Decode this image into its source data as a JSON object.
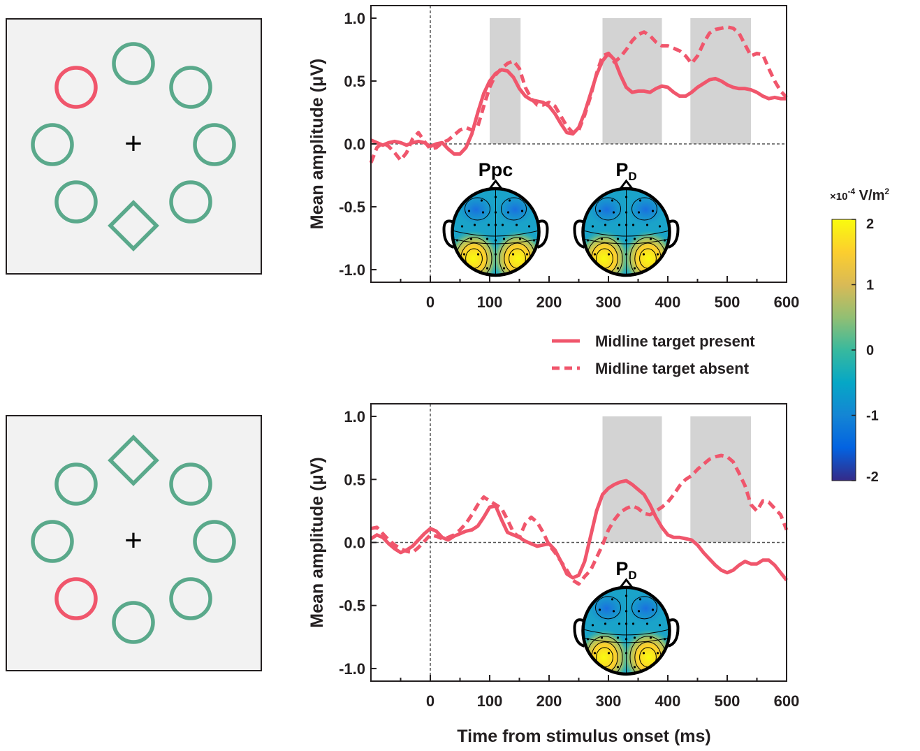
{
  "colors": {
    "target": "#f0566c",
    "distractor": "#5aa98b",
    "window": "#d3d3d3",
    "panel_bg": "#f2f2f2"
  },
  "legend": {
    "present": "Midline target present",
    "absent": "Midline target absent"
  },
  "xlabel": "Time from stimulus onset (ms)",
  "colorbar": {
    "unit_prefix": "×10",
    "unit_exp": "-4",
    "unit_main": " V/m",
    "unit_sup": "2",
    "ticks": [
      "2",
      "1",
      "0",
      "-1",
      "-2"
    ],
    "colormap": "parula"
  },
  "stimuli": [
    {
      "fixation": "+",
      "items": [
        {
          "shape": "circle",
          "color": "target",
          "position": "upper-left"
        },
        {
          "shape": "circle",
          "color": "distractor",
          "position": "top"
        },
        {
          "shape": "circle",
          "color": "distractor",
          "position": "upper-right"
        },
        {
          "shape": "circle",
          "color": "distractor",
          "position": "right"
        },
        {
          "shape": "circle",
          "color": "distractor",
          "position": "lower-right"
        },
        {
          "shape": "diamond",
          "color": "distractor",
          "position": "bottom"
        },
        {
          "shape": "circle",
          "color": "distractor",
          "position": "lower-left"
        },
        {
          "shape": "circle",
          "color": "distractor",
          "position": "left"
        }
      ]
    },
    {
      "fixation": "+",
      "items": [
        {
          "shape": "diamond",
          "color": "distractor",
          "position": "top"
        },
        {
          "shape": "circle",
          "color": "distractor",
          "position": "upper-right"
        },
        {
          "shape": "circle",
          "color": "distractor",
          "position": "right"
        },
        {
          "shape": "circle",
          "color": "distractor",
          "position": "lower-right"
        },
        {
          "shape": "circle",
          "color": "distractor",
          "position": "bottom"
        },
        {
          "shape": "circle",
          "color": "target",
          "position": "lower-left"
        },
        {
          "shape": "circle",
          "color": "distractor",
          "position": "left"
        },
        {
          "shape": "circle",
          "color": "distractor",
          "position": "upper-left"
        }
      ]
    }
  ],
  "chart_data": [
    {
      "type": "line",
      "xlabel": "",
      "ylabel": "Mean amplitude (μV)",
      "xlim": [
        -100,
        600
      ],
      "ylim": [
        -1.1,
        1.1
      ],
      "xticks": [
        "0",
        "100",
        "200",
        "300",
        "400",
        "500",
        "600"
      ],
      "yticks": [
        "1.0",
        "0.5",
        "0.0",
        "-0.5",
        "-1.0"
      ],
      "windows": [
        [
          100,
          152
        ],
        [
          290,
          390
        ],
        [
          438,
          540
        ]
      ],
      "topomaps": [
        {
          "label": "Ppc",
          "sub": "",
          "center_x": 110,
          "center_y": -0.7
        },
        {
          "label": "P",
          "sub": "D",
          "center_x": 330,
          "center_y": -0.7
        }
      ],
      "series": [
        {
          "name": "Midline target present",
          "style": "solid",
          "x": [
            -100,
            -90,
            -80,
            -70,
            -60,
            -50,
            -40,
            -30,
            -20,
            -10,
            0,
            10,
            20,
            30,
            40,
            50,
            60,
            70,
            80,
            90,
            100,
            110,
            120,
            130,
            140,
            150,
            160,
            170,
            180,
            190,
            200,
            210,
            220,
            230,
            240,
            250,
            260,
            270,
            280,
            290,
            300,
            310,
            320,
            330,
            340,
            350,
            360,
            370,
            380,
            390,
            400,
            410,
            420,
            430,
            440,
            450,
            460,
            470,
            480,
            490,
            500,
            510,
            520,
            530,
            540,
            550,
            560,
            570,
            580,
            590,
            600
          ],
          "y": [
            0.03,
            0.01,
            -0.01,
            0.01,
            0.02,
            0.01,
            -0.01,
            0.01,
            0.02,
            0.01,
            -0.02,
            0.0,
            0.01,
            -0.04,
            -0.08,
            -0.08,
            -0.03,
            0.08,
            0.25,
            0.4,
            0.5,
            0.56,
            0.59,
            0.58,
            0.53,
            0.44,
            0.38,
            0.35,
            0.34,
            0.33,
            0.3,
            0.24,
            0.16,
            0.09,
            0.08,
            0.13,
            0.25,
            0.4,
            0.55,
            0.66,
            0.72,
            0.67,
            0.55,
            0.45,
            0.41,
            0.42,
            0.42,
            0.41,
            0.44,
            0.46,
            0.45,
            0.41,
            0.38,
            0.38,
            0.41,
            0.45,
            0.48,
            0.51,
            0.52,
            0.5,
            0.47,
            0.45,
            0.44,
            0.44,
            0.43,
            0.41,
            0.38,
            0.36,
            0.37,
            0.36,
            0.36
          ]
        },
        {
          "name": "Midline target absent",
          "style": "dashed",
          "x": [
            -100,
            -90,
            -80,
            -70,
            -60,
            -50,
            -40,
            -30,
            -20,
            -10,
            0,
            10,
            20,
            30,
            40,
            50,
            60,
            70,
            80,
            90,
            100,
            110,
            120,
            130,
            140,
            150,
            160,
            170,
            180,
            190,
            200,
            210,
            220,
            230,
            240,
            250,
            260,
            270,
            280,
            290,
            300,
            310,
            320,
            330,
            340,
            350,
            360,
            370,
            380,
            390,
            400,
            410,
            420,
            430,
            440,
            450,
            460,
            470,
            480,
            490,
            500,
            510,
            520,
            530,
            540,
            550,
            560,
            570,
            580,
            590,
            600
          ],
          "y": [
            -0.15,
            -0.03,
            0.01,
            -0.02,
            -0.07,
            -0.13,
            -0.07,
            0.04,
            0.09,
            0.02,
            -0.04,
            -0.03,
            0.01,
            0.03,
            0.07,
            0.11,
            0.13,
            0.11,
            0.14,
            0.3,
            0.45,
            0.55,
            0.6,
            0.64,
            0.66,
            0.6,
            0.45,
            0.36,
            0.31,
            0.31,
            0.33,
            0.3,
            0.22,
            0.14,
            0.09,
            0.11,
            0.23,
            0.38,
            0.56,
            0.7,
            0.72,
            0.65,
            0.69,
            0.75,
            0.82,
            0.87,
            0.89,
            0.86,
            0.81,
            0.78,
            0.78,
            0.76,
            0.74,
            0.7,
            0.64,
            0.7,
            0.8,
            0.88,
            0.91,
            0.92,
            0.93,
            0.92,
            0.88,
            0.79,
            0.7,
            0.72,
            0.71,
            0.6,
            0.5,
            0.42,
            0.37
          ]
        }
      ]
    },
    {
      "type": "line",
      "xlabel": "",
      "ylabel": "Mean amplitude (μV)",
      "xlim": [
        -100,
        600
      ],
      "ylim": [
        -1.1,
        1.1
      ],
      "xticks": [
        "0",
        "100",
        "200",
        "300",
        "400",
        "500",
        "600"
      ],
      "yticks": [
        "1.0",
        "0.5",
        "0.0",
        "-0.5",
        "-1.0"
      ],
      "windows": [
        [
          290,
          390
        ],
        [
          438,
          540
        ]
      ],
      "topomaps": [
        {
          "label": "P",
          "sub": "D",
          "center_x": 330,
          "center_y": -0.7
        }
      ],
      "series": [
        {
          "name": "Midline target present",
          "style": "solid",
          "x": [
            -100,
            -90,
            -80,
            -70,
            -60,
            -50,
            -40,
            -30,
            -20,
            -10,
            0,
            10,
            20,
            30,
            40,
            50,
            60,
            70,
            80,
            90,
            100,
            110,
            120,
            130,
            140,
            150,
            160,
            170,
            180,
            190,
            200,
            210,
            220,
            230,
            240,
            250,
            260,
            270,
            280,
            290,
            300,
            310,
            320,
            330,
            340,
            350,
            360,
            370,
            380,
            390,
            400,
            410,
            420,
            430,
            440,
            450,
            460,
            470,
            480,
            490,
            500,
            510,
            520,
            530,
            540,
            550,
            560,
            570,
            580,
            590,
            600
          ],
          "y": [
            0.03,
            0.06,
            0.04,
            -0.01,
            -0.05,
            -0.08,
            -0.06,
            -0.03,
            0.02,
            0.07,
            0.11,
            0.09,
            0.04,
            0.02,
            0.05,
            0.07,
            0.09,
            0.1,
            0.13,
            0.2,
            0.28,
            0.29,
            0.18,
            0.08,
            0.06,
            0.04,
            0.01,
            -0.01,
            -0.03,
            -0.02,
            -0.01,
            -0.06,
            -0.15,
            -0.25,
            -0.28,
            -0.26,
            -0.15,
            0.05,
            0.25,
            0.38,
            0.43,
            0.46,
            0.48,
            0.49,
            0.46,
            0.42,
            0.38,
            0.3,
            0.2,
            0.12,
            0.06,
            0.04,
            0.04,
            0.03,
            0.02,
            -0.02,
            -0.08,
            -0.13,
            -0.18,
            -0.22,
            -0.24,
            -0.22,
            -0.18,
            -0.15,
            -0.17,
            -0.17,
            -0.14,
            -0.14,
            -0.18,
            -0.24,
            -0.3
          ]
        },
        {
          "name": "Midline target absent",
          "style": "dashed",
          "x": [
            -100,
            -90,
            -80,
            -70,
            -60,
            -50,
            -40,
            -30,
            -20,
            -10,
            0,
            10,
            20,
            30,
            40,
            50,
            60,
            70,
            80,
            90,
            100,
            110,
            120,
            130,
            140,
            150,
            160,
            170,
            180,
            190,
            200,
            210,
            220,
            230,
            240,
            250,
            260,
            270,
            280,
            290,
            300,
            310,
            320,
            330,
            340,
            350,
            360,
            370,
            380,
            390,
            400,
            410,
            420,
            430,
            440,
            450,
            460,
            470,
            480,
            490,
            500,
            510,
            520,
            530,
            540,
            550,
            560,
            570,
            580,
            590,
            600
          ],
          "y": [
            0.11,
            0.12,
            0.07,
            0.02,
            -0.02,
            -0.05,
            -0.07,
            -0.08,
            -0.04,
            0.01,
            0.06,
            0.05,
            0.03,
            0.04,
            0.06,
            0.1,
            0.15,
            0.22,
            0.3,
            0.36,
            0.33,
            0.3,
            0.27,
            0.18,
            0.08,
            0.04,
            0.15,
            0.2,
            0.16,
            0.08,
            -0.02,
            -0.08,
            -0.15,
            -0.22,
            -0.3,
            -0.33,
            -0.27,
            -0.22,
            -0.12,
            -0.02,
            0.1,
            0.18,
            0.24,
            0.27,
            0.29,
            0.27,
            0.23,
            0.22,
            0.25,
            0.28,
            0.32,
            0.38,
            0.45,
            0.5,
            0.53,
            0.58,
            0.62,
            0.66,
            0.68,
            0.69,
            0.68,
            0.64,
            0.55,
            0.45,
            0.3,
            0.25,
            0.33,
            0.32,
            0.27,
            0.22,
            0.1
          ]
        }
      ]
    }
  ]
}
